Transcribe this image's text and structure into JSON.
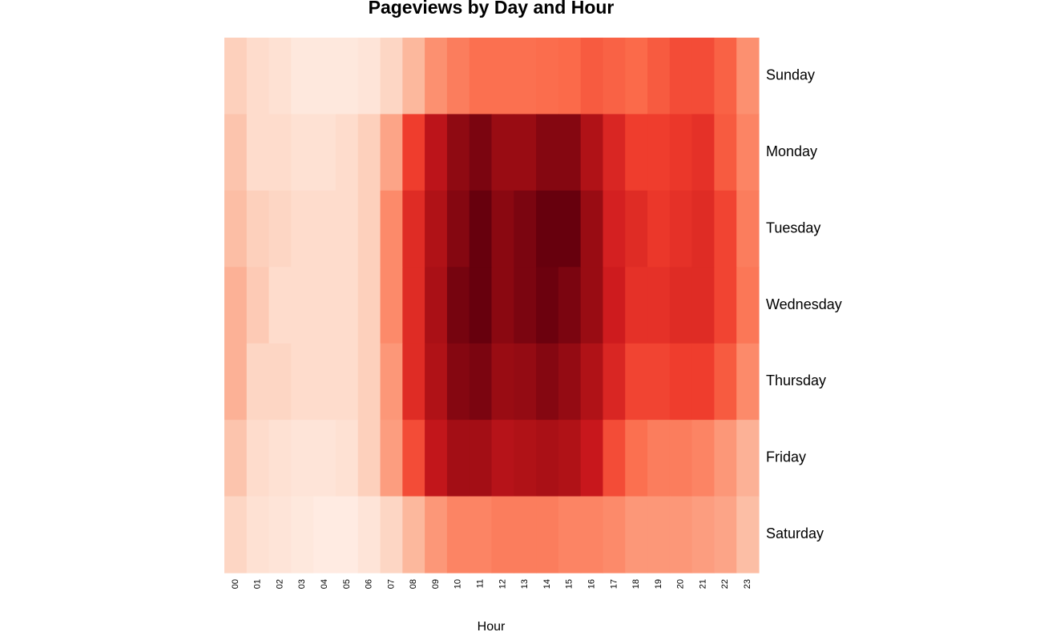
{
  "chart_data": {
    "type": "heatmap",
    "title": "Pageviews by Day and Hour",
    "xlabel": "Hour",
    "ylabel": "",
    "rows": [
      "Sunday",
      "Monday",
      "Tuesday",
      "Wednesday",
      "Thursday",
      "Friday",
      "Saturday"
    ],
    "columns": [
      "00",
      "01",
      "02",
      "03",
      "04",
      "05",
      "06",
      "07",
      "08",
      "09",
      "10",
      "11",
      "12",
      "13",
      "14",
      "15",
      "16",
      "17",
      "18",
      "19",
      "20",
      "21",
      "22",
      "23"
    ],
    "values": [
      [
        0.18,
        0.14,
        0.12,
        0.08,
        0.08,
        0.08,
        0.1,
        0.16,
        0.26,
        0.38,
        0.44,
        0.48,
        0.48,
        0.48,
        0.49,
        0.5,
        0.54,
        0.52,
        0.5,
        0.54,
        0.58,
        0.58,
        0.52,
        0.38
      ],
      [
        0.22,
        0.14,
        0.14,
        0.12,
        0.12,
        0.14,
        0.18,
        0.32,
        0.62,
        0.8,
        0.92,
        0.96,
        0.9,
        0.9,
        0.94,
        0.94,
        0.84,
        0.7,
        0.62,
        0.62,
        0.64,
        0.66,
        0.54,
        0.42
      ],
      [
        0.24,
        0.18,
        0.16,
        0.14,
        0.14,
        0.14,
        0.18,
        0.4,
        0.68,
        0.84,
        0.94,
        1.0,
        0.93,
        0.96,
        1.0,
        1.0,
        0.9,
        0.72,
        0.68,
        0.64,
        0.66,
        0.68,
        0.6,
        0.44
      ],
      [
        0.28,
        0.2,
        0.14,
        0.14,
        0.14,
        0.14,
        0.18,
        0.4,
        0.68,
        0.86,
        0.97,
        1.0,
        0.93,
        0.96,
        0.99,
        0.96,
        0.9,
        0.74,
        0.66,
        0.66,
        0.68,
        0.68,
        0.6,
        0.46
      ],
      [
        0.28,
        0.16,
        0.16,
        0.14,
        0.14,
        0.14,
        0.18,
        0.36,
        0.68,
        0.84,
        0.94,
        0.96,
        0.9,
        0.91,
        0.94,
        0.91,
        0.84,
        0.7,
        0.6,
        0.6,
        0.62,
        0.62,
        0.54,
        0.4
      ],
      [
        0.22,
        0.14,
        0.12,
        0.1,
        0.1,
        0.12,
        0.18,
        0.34,
        0.58,
        0.78,
        0.88,
        0.88,
        0.82,
        0.84,
        0.86,
        0.84,
        0.76,
        0.58,
        0.48,
        0.44,
        0.44,
        0.42,
        0.36,
        0.28
      ],
      [
        0.16,
        0.12,
        0.1,
        0.08,
        0.06,
        0.06,
        0.1,
        0.16,
        0.26,
        0.36,
        0.42,
        0.42,
        0.44,
        0.44,
        0.44,
        0.42,
        0.42,
        0.4,
        0.36,
        0.36,
        0.36,
        0.34,
        0.32,
        0.24
      ]
    ],
    "colormap": [
      "#fff5f0",
      "#fee0d2",
      "#fcbba1",
      "#fc9272",
      "#fb6a4a",
      "#ef3b2c",
      "#cb181d",
      "#a50f15",
      "#67000d"
    ],
    "legend": "none"
  }
}
